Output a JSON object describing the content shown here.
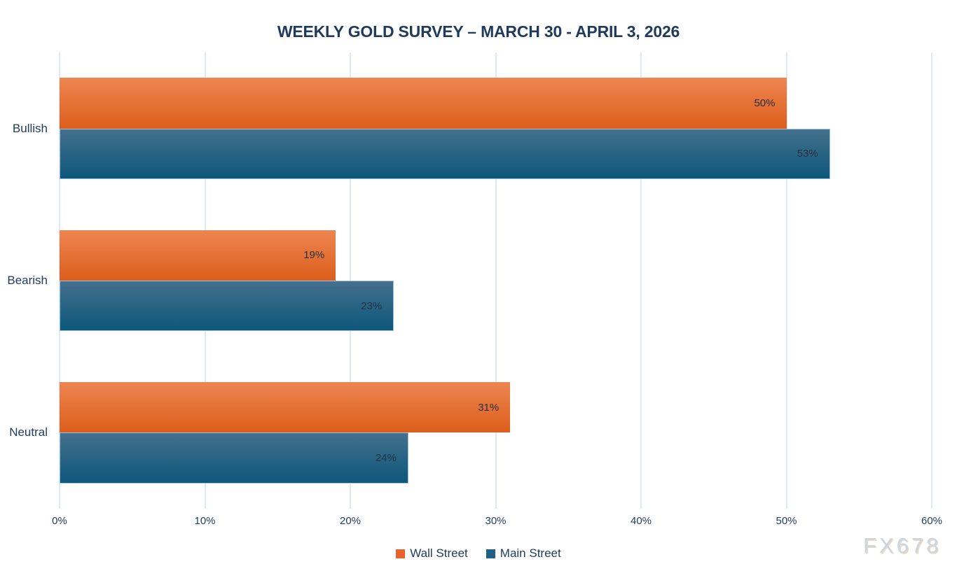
{
  "chart_data": {
    "type": "bar",
    "orientation": "horizontal",
    "title": "WEEKLY GOLD SURVEY – MARCH 30 - APRIL 3, 2026",
    "categories": [
      "Bullish",
      "Bearish",
      "Neutral"
    ],
    "series": [
      {
        "name": "Wall Street",
        "values": [
          50,
          19,
          31
        ],
        "color_top": "#EE8551",
        "color_bottom": "#DC5E1B",
        "legend_color": "#E8632B"
      },
      {
        "name": "Main Street",
        "values": [
          53,
          23,
          24
        ],
        "color_top": "#45708D",
        "color_bottom": "#0D577B",
        "legend_color": "#1F6083",
        "border_color": "#9FC2DE"
      }
    ],
    "value_suffix": "%",
    "xlim": [
      0,
      60
    ],
    "x_ticks": [
      "0%",
      "10%",
      "20%",
      "30%",
      "40%",
      "50%",
      "60%"
    ],
    "grid": true,
    "legend_position": "bottom"
  },
  "watermark": "FX678",
  "colors": {
    "title": "#1E3A5C",
    "axis_label": "#1E3A5C",
    "data_label": "#233140",
    "gridline": "#DCEAF7",
    "background": "#FFFFFF",
    "watermark": "#CBD6E1",
    "watermark_shadow": "#EAD8C2"
  }
}
